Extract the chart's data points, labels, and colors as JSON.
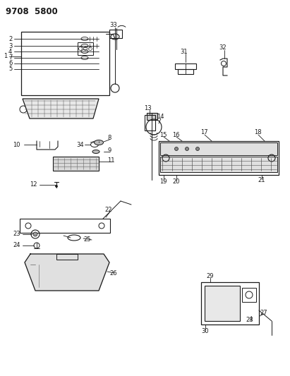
{
  "title": "9708  5800",
  "bg_color": "#ffffff",
  "fg_color": "#1a1a1a",
  "fig_width": 4.11,
  "fig_height": 5.33,
  "dpi": 100,
  "label_fs": 6.0
}
